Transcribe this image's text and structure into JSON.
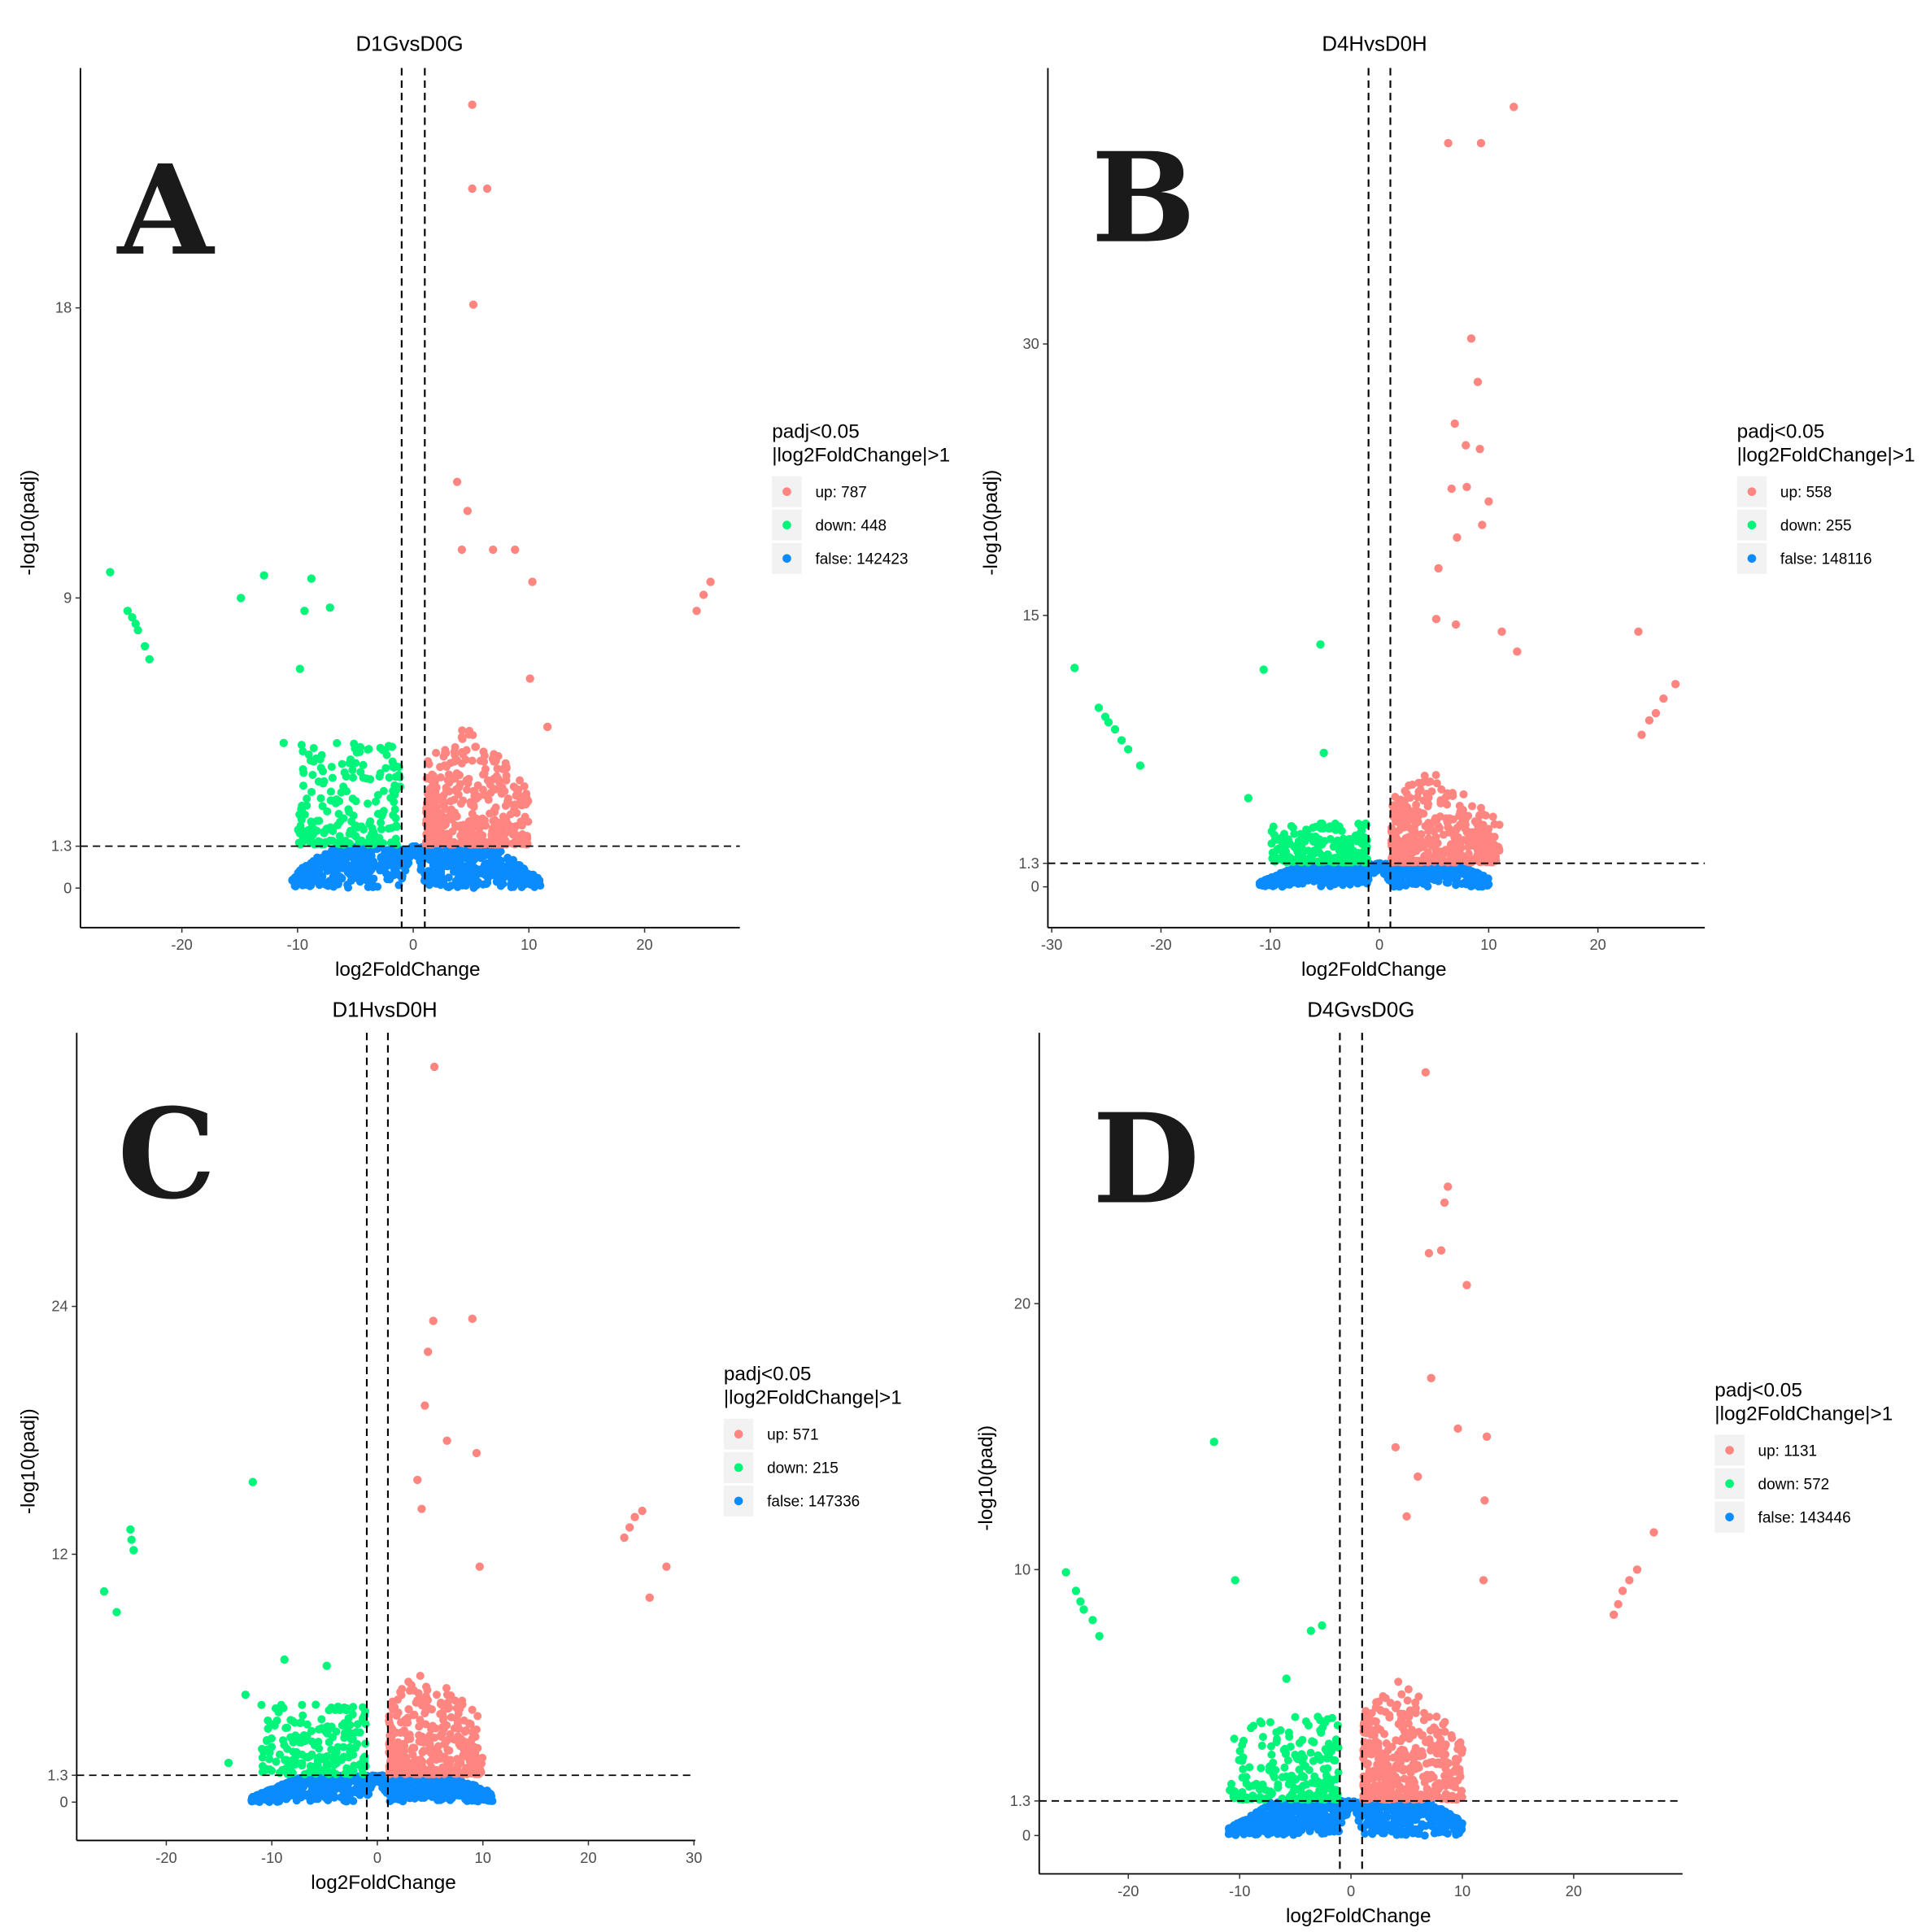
{
  "chart_data": [
    {
      "type": "scatter",
      "panel_label": "A",
      "title": "D1GvsD0G",
      "xlabel": "log2FoldChange",
      "ylabel": "-log10(padj)",
      "xticks": [
        -20,
        -10,
        0,
        10,
        20
      ],
      "xtick_labels": [
        "-20",
        "-10",
        "0",
        "10",
        "20"
      ],
      "yticks": [
        0,
        1.3,
        9,
        18
      ],
      "ytick_labels": [
        "0",
        "1.3",
        "9",
        "18"
      ],
      "xlim": [
        -28.5,
        28.5
      ],
      "ylim": [
        -1.2,
        25.5
      ],
      "thresholds": {
        "log2fc": [
          -1,
          1
        ],
        "neg_log10_padj": 1.3
      },
      "legend": {
        "title": [
          "padj<0.05",
          "|log2FoldChange|>1"
        ],
        "entries": [
          {
            "group": "up",
            "label": "up: 787",
            "count": 787,
            "color": "#FF8580"
          },
          {
            "group": "down",
            "label": "down: 448",
            "count": 448,
            "color": "#00F57A"
          },
          {
            "group": "false",
            "label": "false: 142423",
            "count": 142423,
            "color": "#0A8CFF"
          }
        ]
      },
      "points": [
        {
          "x": 5.1,
          "y": 24.3,
          "g": "up"
        },
        {
          "x": 5.1,
          "y": 21.7,
          "g": "up"
        },
        {
          "x": 6.4,
          "y": 21.7,
          "g": "up"
        },
        {
          "x": 5.2,
          "y": 18.1,
          "g": "up"
        },
        {
          "x": 3.8,
          "y": 12.6,
          "g": "up"
        },
        {
          "x": 4.7,
          "y": 11.7,
          "g": "up"
        },
        {
          "x": 4.2,
          "y": 10.5,
          "g": "up"
        },
        {
          "x": 6.9,
          "y": 10.5,
          "g": "up"
        },
        {
          "x": 8.8,
          "y": 10.5,
          "g": "up"
        },
        {
          "x": 10.3,
          "y": 9.5,
          "g": "up"
        },
        {
          "x": 25.7,
          "y": 9.5,
          "g": "up"
        },
        {
          "x": 25.1,
          "y": 9.1,
          "g": "up"
        },
        {
          "x": 24.5,
          "y": 8.6,
          "g": "up"
        },
        {
          "x": 11.6,
          "y": 5.0,
          "g": "up"
        },
        {
          "x": 10.1,
          "y": 6.5,
          "g": "up"
        },
        {
          "x": -26.2,
          "y": 9.8,
          "g": "down"
        },
        {
          "x": -12.9,
          "y": 9.7,
          "g": "down"
        },
        {
          "x": -8.8,
          "y": 9.6,
          "g": "down"
        },
        {
          "x": -14.9,
          "y": 9.0,
          "g": "down"
        },
        {
          "x": -9.4,
          "y": 8.6,
          "g": "down"
        },
        {
          "x": -7.2,
          "y": 8.7,
          "g": "down"
        },
        {
          "x": -24.7,
          "y": 8.6,
          "g": "down"
        },
        {
          "x": -24.3,
          "y": 8.4,
          "g": "down"
        },
        {
          "x": -24.0,
          "y": 8.2,
          "g": "down"
        },
        {
          "x": -23.8,
          "y": 8.0,
          "g": "down"
        },
        {
          "x": -23.2,
          "y": 7.5,
          "g": "down"
        },
        {
          "x": -22.8,
          "y": 7.1,
          "g": "down"
        },
        {
          "x": -9.8,
          "y": 6.8,
          "g": "down"
        },
        {
          "x": -11.2,
          "y": 4.5,
          "g": "down"
        }
      ]
    },
    {
      "type": "scatter",
      "panel_label": "B",
      "title": "D4HvsD0H",
      "xlabel": "log2FoldChange",
      "ylabel": "-log10(padj)",
      "xticks": [
        -30,
        -20,
        -10,
        0,
        10,
        20
      ],
      "xtick_labels": [
        "-30",
        "-20",
        "-10",
        "0",
        "10",
        "20"
      ],
      "yticks": [
        0,
        1.3,
        15,
        30
      ],
      "ytick_labels": [
        "0",
        "1.3",
        "15",
        "30"
      ],
      "xlim": [
        -30.5,
        29.5
      ],
      "ylim": [
        -2.3,
        45
      ],
      "thresholds": {
        "log2fc": [
          -1,
          1
        ],
        "neg_log10_padj": 1.3
      },
      "legend": {
        "title": [
          "padj<0.05",
          "|log2FoldChange|>1"
        ],
        "entries": [
          {
            "group": "up",
            "label": "up: 558",
            "count": 558,
            "color": "#FF8580"
          },
          {
            "group": "down",
            "label": "down: 255",
            "count": 255,
            "color": "#00F57A"
          },
          {
            "group": "false",
            "label": "false: 148116",
            "count": 148116,
            "color": "#0A8CFF"
          }
        ]
      },
      "points": [
        {
          "x": 12.3,
          "y": 43.1,
          "g": "up"
        },
        {
          "x": 6.3,
          "y": 41.1,
          "g": "up"
        },
        {
          "x": 9.3,
          "y": 41.1,
          "g": "up"
        },
        {
          "x": 8.4,
          "y": 30.3,
          "g": "up"
        },
        {
          "x": 9.0,
          "y": 27.9,
          "g": "up"
        },
        {
          "x": 6.9,
          "y": 25.6,
          "g": "up"
        },
        {
          "x": 7.9,
          "y": 24.4,
          "g": "up"
        },
        {
          "x": 9.2,
          "y": 24.2,
          "g": "up"
        },
        {
          "x": 10.0,
          "y": 21.3,
          "g": "up"
        },
        {
          "x": 6.6,
          "y": 22.0,
          "g": "up"
        },
        {
          "x": 8.0,
          "y": 22.1,
          "g": "up"
        },
        {
          "x": 9.4,
          "y": 20.0,
          "g": "up"
        },
        {
          "x": 7.1,
          "y": 19.3,
          "g": "up"
        },
        {
          "x": 5.4,
          "y": 17.6,
          "g": "up"
        },
        {
          "x": 23.7,
          "y": 14.1,
          "g": "up"
        },
        {
          "x": 27.1,
          "y": 11.2,
          "g": "up"
        },
        {
          "x": 26.0,
          "y": 10.4,
          "g": "up"
        },
        {
          "x": 25.3,
          "y": 9.6,
          "g": "up"
        },
        {
          "x": 24.7,
          "y": 9.2,
          "g": "up"
        },
        {
          "x": 24.0,
          "y": 8.4,
          "g": "up"
        },
        {
          "x": 12.6,
          "y": 13.0,
          "g": "up"
        },
        {
          "x": 11.2,
          "y": 14.1,
          "g": "up"
        },
        {
          "x": 5.2,
          "y": 14.8,
          "g": "up"
        },
        {
          "x": 7.0,
          "y": 14.5,
          "g": "up"
        },
        {
          "x": -27.9,
          "y": 12.1,
          "g": "down"
        },
        {
          "x": -5.4,
          "y": 13.4,
          "g": "down"
        },
        {
          "x": -10.6,
          "y": 12.0,
          "g": "down"
        },
        {
          "x": -25.7,
          "y": 9.9,
          "g": "down"
        },
        {
          "x": -25.1,
          "y": 9.4,
          "g": "down"
        },
        {
          "x": -24.8,
          "y": 9.1,
          "g": "down"
        },
        {
          "x": -24.2,
          "y": 8.7,
          "g": "down"
        },
        {
          "x": -23.6,
          "y": 8.1,
          "g": "down"
        },
        {
          "x": -23.0,
          "y": 7.6,
          "g": "down"
        },
        {
          "x": -21.9,
          "y": 6.7,
          "g": "down"
        },
        {
          "x": -5.1,
          "y": 7.4,
          "g": "down"
        },
        {
          "x": -12.0,
          "y": 4.9,
          "g": "down"
        }
      ]
    },
    {
      "type": "scatter",
      "panel_label": "C",
      "title": "D1HvsD0H",
      "xlabel": "log2FoldChange",
      "ylabel": "-log10(padj)",
      "xticks": [
        -20,
        -10,
        0,
        10,
        20,
        30
      ],
      "xtick_labels": [
        "-20",
        "-10",
        "0",
        "10",
        "20",
        "30"
      ],
      "yticks": [
        0,
        1.3,
        12,
        24
      ],
      "ytick_labels": [
        "0",
        "1.3",
        "12",
        "24"
      ],
      "xlim": [
        -28.5,
        30
      ],
      "ylim": [
        -1.9,
        37
      ],
      "thresholds": {
        "log2fc": [
          -1,
          1
        ],
        "neg_log10_padj": 1.3
      },
      "legend": {
        "title": [
          "padj<0.05",
          "|log2FoldChange|>1"
        ],
        "entries": [
          {
            "group": "up",
            "label": "up: 571",
            "count": 571,
            "color": "#FF8580"
          },
          {
            "group": "down",
            "label": "down: 215",
            "count": 215,
            "color": "#00F57A"
          },
          {
            "group": "false",
            "label": "false: 147336",
            "count": 147336,
            "color": "#0A8CFF"
          }
        ]
      },
      "points": [
        {
          "x": 5.4,
          "y": 35.6,
          "g": "up"
        },
        {
          "x": 5.3,
          "y": 23.3,
          "g": "up"
        },
        {
          "x": 9.0,
          "y": 23.4,
          "g": "up"
        },
        {
          "x": 4.8,
          "y": 21.8,
          "g": "up"
        },
        {
          "x": 4.5,
          "y": 19.2,
          "g": "up"
        },
        {
          "x": 6.6,
          "y": 17.5,
          "g": "up"
        },
        {
          "x": 9.4,
          "y": 16.9,
          "g": "up"
        },
        {
          "x": 3.8,
          "y": 15.6,
          "g": "up"
        },
        {
          "x": 25.1,
          "y": 14.1,
          "g": "up"
        },
        {
          "x": 24.4,
          "y": 13.8,
          "g": "up"
        },
        {
          "x": 23.9,
          "y": 13.3,
          "g": "up"
        },
        {
          "x": 23.4,
          "y": 12.8,
          "g": "up"
        },
        {
          "x": 27.4,
          "y": 11.4,
          "g": "up"
        },
        {
          "x": 25.8,
          "y": 9.9,
          "g": "up"
        },
        {
          "x": 9.7,
          "y": 11.4,
          "g": "up"
        },
        {
          "x": 4.2,
          "y": 14.2,
          "g": "up"
        },
        {
          "x": -11.8,
          "y": 15.5,
          "g": "down"
        },
        {
          "x": -23.4,
          "y": 13.2,
          "g": "down"
        },
        {
          "x": -23.3,
          "y": 12.7,
          "g": "down"
        },
        {
          "x": -23.1,
          "y": 12.2,
          "g": "down"
        },
        {
          "x": -25.9,
          "y": 10.2,
          "g": "down"
        },
        {
          "x": -24.7,
          "y": 9.2,
          "g": "down"
        },
        {
          "x": -14.1,
          "y": 1.9,
          "g": "down"
        },
        {
          "x": -12.5,
          "y": 5.2,
          "g": "down"
        },
        {
          "x": -8.8,
          "y": 6.9,
          "g": "down"
        },
        {
          "x": -4.8,
          "y": 6.6,
          "g": "down"
        }
      ]
    },
    {
      "type": "scatter",
      "panel_label": "D",
      "title": "D4GvsD0G",
      "xlabel": "log2FoldChange",
      "ylabel": "-log10(padj)",
      "xticks": [
        -20,
        -10,
        0,
        10,
        20
      ],
      "xtick_labels": [
        "-20",
        "-10",
        "0",
        "10",
        "20"
      ],
      "yticks": [
        0,
        1.3,
        10,
        20
      ],
      "ytick_labels": [
        "0",
        "1.3",
        "10",
        "20"
      ],
      "xlim": [
        -28,
        29.8
      ],
      "ylim": [
        -1.45,
        30.2
      ],
      "thresholds": {
        "log2fc": [
          -1,
          1
        ],
        "neg_log10_padj": 1.3
      },
      "legend": {
        "title": [
          "padj<0.05",
          "|log2FoldChange|>1"
        ],
        "entries": [
          {
            "group": "up",
            "label": "up: 1131",
            "count": 1131,
            "color": "#FF8580"
          },
          {
            "group": "down",
            "label": "down: 572",
            "count": 572,
            "color": "#00F57A"
          },
          {
            "group": "false",
            "label": "false: 143446",
            "count": 143446,
            "color": "#0A8CFF"
          }
        ]
      },
      "points": [
        {
          "x": 6.7,
          "y": 28.7,
          "g": "up"
        },
        {
          "x": 8.7,
          "y": 24.4,
          "g": "up"
        },
        {
          "x": 8.4,
          "y": 23.8,
          "g": "up"
        },
        {
          "x": 8.1,
          "y": 22.0,
          "g": "up"
        },
        {
          "x": 7.0,
          "y": 21.9,
          "g": "up"
        },
        {
          "x": 10.4,
          "y": 20.7,
          "g": "up"
        },
        {
          "x": 7.2,
          "y": 17.2,
          "g": "up"
        },
        {
          "x": 9.6,
          "y": 15.3,
          "g": "up"
        },
        {
          "x": 12.2,
          "y": 15.0,
          "g": "up"
        },
        {
          "x": 12.0,
          "y": 12.6,
          "g": "up"
        },
        {
          "x": 27.2,
          "y": 11.4,
          "g": "up"
        },
        {
          "x": 25.7,
          "y": 10.0,
          "g": "up"
        },
        {
          "x": 25.0,
          "y": 9.6,
          "g": "up"
        },
        {
          "x": 24.4,
          "y": 9.2,
          "g": "up"
        },
        {
          "x": 24.0,
          "y": 8.7,
          "g": "up"
        },
        {
          "x": 23.6,
          "y": 8.3,
          "g": "up"
        },
        {
          "x": 11.9,
          "y": 9.6,
          "g": "up"
        },
        {
          "x": 4.0,
          "y": 14.6,
          "g": "up"
        },
        {
          "x": 6.0,
          "y": 13.5,
          "g": "up"
        },
        {
          "x": 5.0,
          "y": 12.0,
          "g": "up"
        },
        {
          "x": -12.3,
          "y": 14.8,
          "g": "down"
        },
        {
          "x": -10.4,
          "y": 9.6,
          "g": "down"
        },
        {
          "x": -25.6,
          "y": 9.9,
          "g": "down"
        },
        {
          "x": -24.7,
          "y": 9.2,
          "g": "down"
        },
        {
          "x": -24.3,
          "y": 8.8,
          "g": "down"
        },
        {
          "x": -24.0,
          "y": 8.5,
          "g": "down"
        },
        {
          "x": -23.2,
          "y": 8.1,
          "g": "down"
        },
        {
          "x": -22.6,
          "y": 7.5,
          "g": "down"
        },
        {
          "x": -3.6,
          "y": 7.7,
          "g": "down"
        },
        {
          "x": -2.6,
          "y": 7.9,
          "g": "down"
        },
        {
          "x": -5.8,
          "y": 5.9,
          "g": "down"
        }
      ]
    }
  ]
}
